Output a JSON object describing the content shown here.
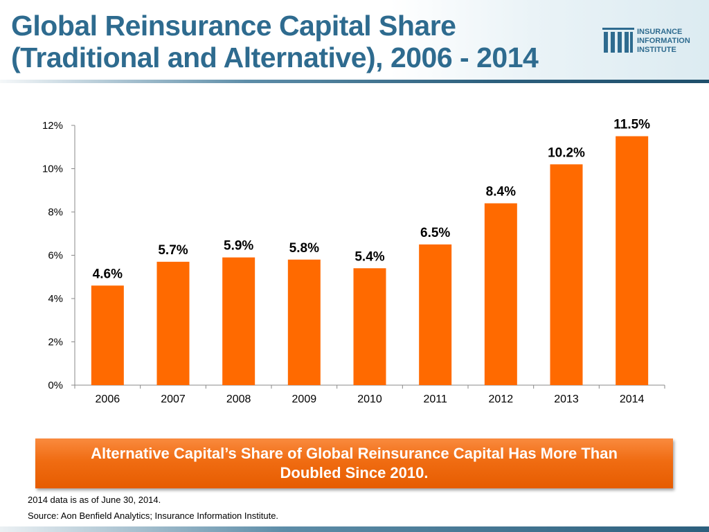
{
  "title": {
    "line1": "Global Reinsurance Capital Share",
    "line2": "(Traditional and Alternative), 2006 - 2014"
  },
  "logo": {
    "line1": "INSURANCE",
    "line2": "INFORMATION",
    "line3": "INSTITUTE"
  },
  "colors": {
    "title": "#2e6b8f",
    "bar": "#ff6a00",
    "callout": "#f06c12"
  },
  "chart_data": {
    "type": "bar",
    "title": "",
    "xlabel": "",
    "ylabel": "",
    "categories": [
      "2006",
      "2007",
      "2008",
      "2009",
      "2010",
      "2011",
      "2012",
      "2013",
      "2014"
    ],
    "values": [
      4.6,
      5.7,
      5.9,
      5.8,
      5.4,
      6.5,
      8.4,
      10.2,
      11.5
    ],
    "data_labels": [
      "4.6%",
      "5.7%",
      "5.9%",
      "5.8%",
      "5.4%",
      "6.5%",
      "8.4%",
      "10.2%",
      "11.5%"
    ],
    "ylim": [
      0,
      12
    ],
    "yticks": [
      0,
      2,
      4,
      6,
      8,
      10,
      12
    ],
    "ytick_labels": [
      "0%",
      "2%",
      "4%",
      "6%",
      "8%",
      "10%",
      "12%"
    ],
    "grid": false
  },
  "callout": {
    "line1": "Alternative Capital’s Share of Global Reinsurance Capital Has More Than",
    "line2": "Doubled Since 2010."
  },
  "notes": {
    "note1": "2014 data is as of June 30, 2014.",
    "source": "Source: Aon Benfield Analytics; Insurance Information Institute."
  }
}
